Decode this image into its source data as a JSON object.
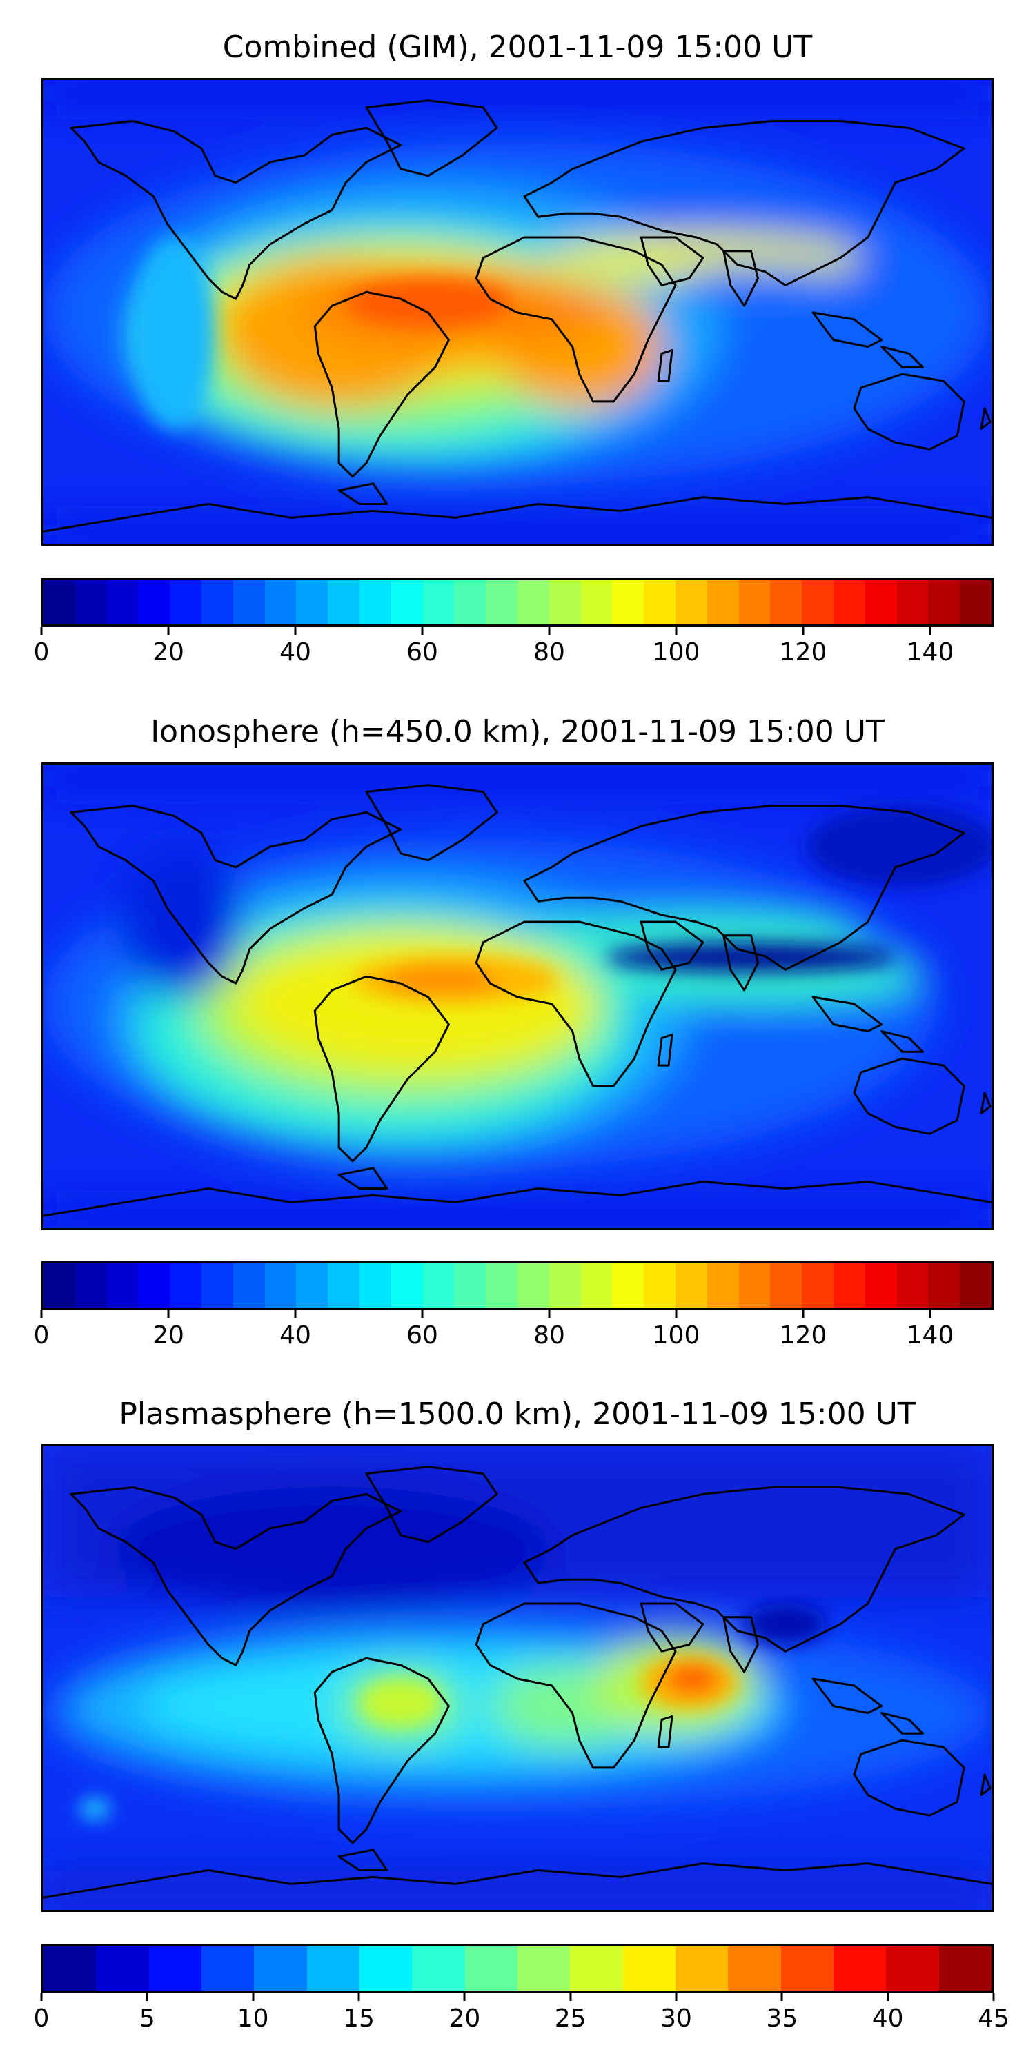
{
  "panels": [
    {
      "title": "Combined (GIM), 2001-11-09 15:00 UT",
      "colorbar": {
        "min": 0,
        "max": 150,
        "levels": 30,
        "ticks": [
          "0",
          "20",
          "40",
          "60",
          "80",
          "100",
          "120",
          "140"
        ]
      },
      "features": [
        {
          "lon": -45,
          "lat": 2,
          "value": 125
        },
        {
          "lon": 12,
          "lat": 0,
          "value": 118
        },
        {
          "lon": 30,
          "lat": 12,
          "value": 110
        },
        {
          "lon": 60,
          "lat": 20,
          "value": 95
        }
      ]
    },
    {
      "title": "Ionosphere  (h=450.0 km), 2001-11-09 15:00 UT",
      "colorbar": {
        "min": 0,
        "max": 150,
        "levels": 30,
        "ticks": [
          "0",
          "20",
          "40",
          "60",
          "80",
          "100",
          "120",
          "140"
        ]
      },
      "features": [
        {
          "lon": -38,
          "lat": 8,
          "value": 112
        },
        {
          "lon": 5,
          "lat": 5,
          "value": 100
        },
        {
          "lon": 110,
          "lat": 10,
          "value": 5
        }
      ]
    },
    {
      "title": "Plasmasphere (h=1500.0 km), 2001-11-09 15:00 UT",
      "colorbar": {
        "min": 0,
        "max": 45,
        "levels": 18,
        "ticks": [
          "0",
          "5",
          "10",
          "15",
          "20",
          "25",
          "30",
          "35",
          "40",
          "45"
        ]
      },
      "features": [
        {
          "lon": 45,
          "lat": 5,
          "value": 36
        },
        {
          "lon": -50,
          "lat": -3,
          "value": 27
        },
        {
          "lon": 10,
          "lat": 0,
          "value": 26
        }
      ]
    }
  ]
}
